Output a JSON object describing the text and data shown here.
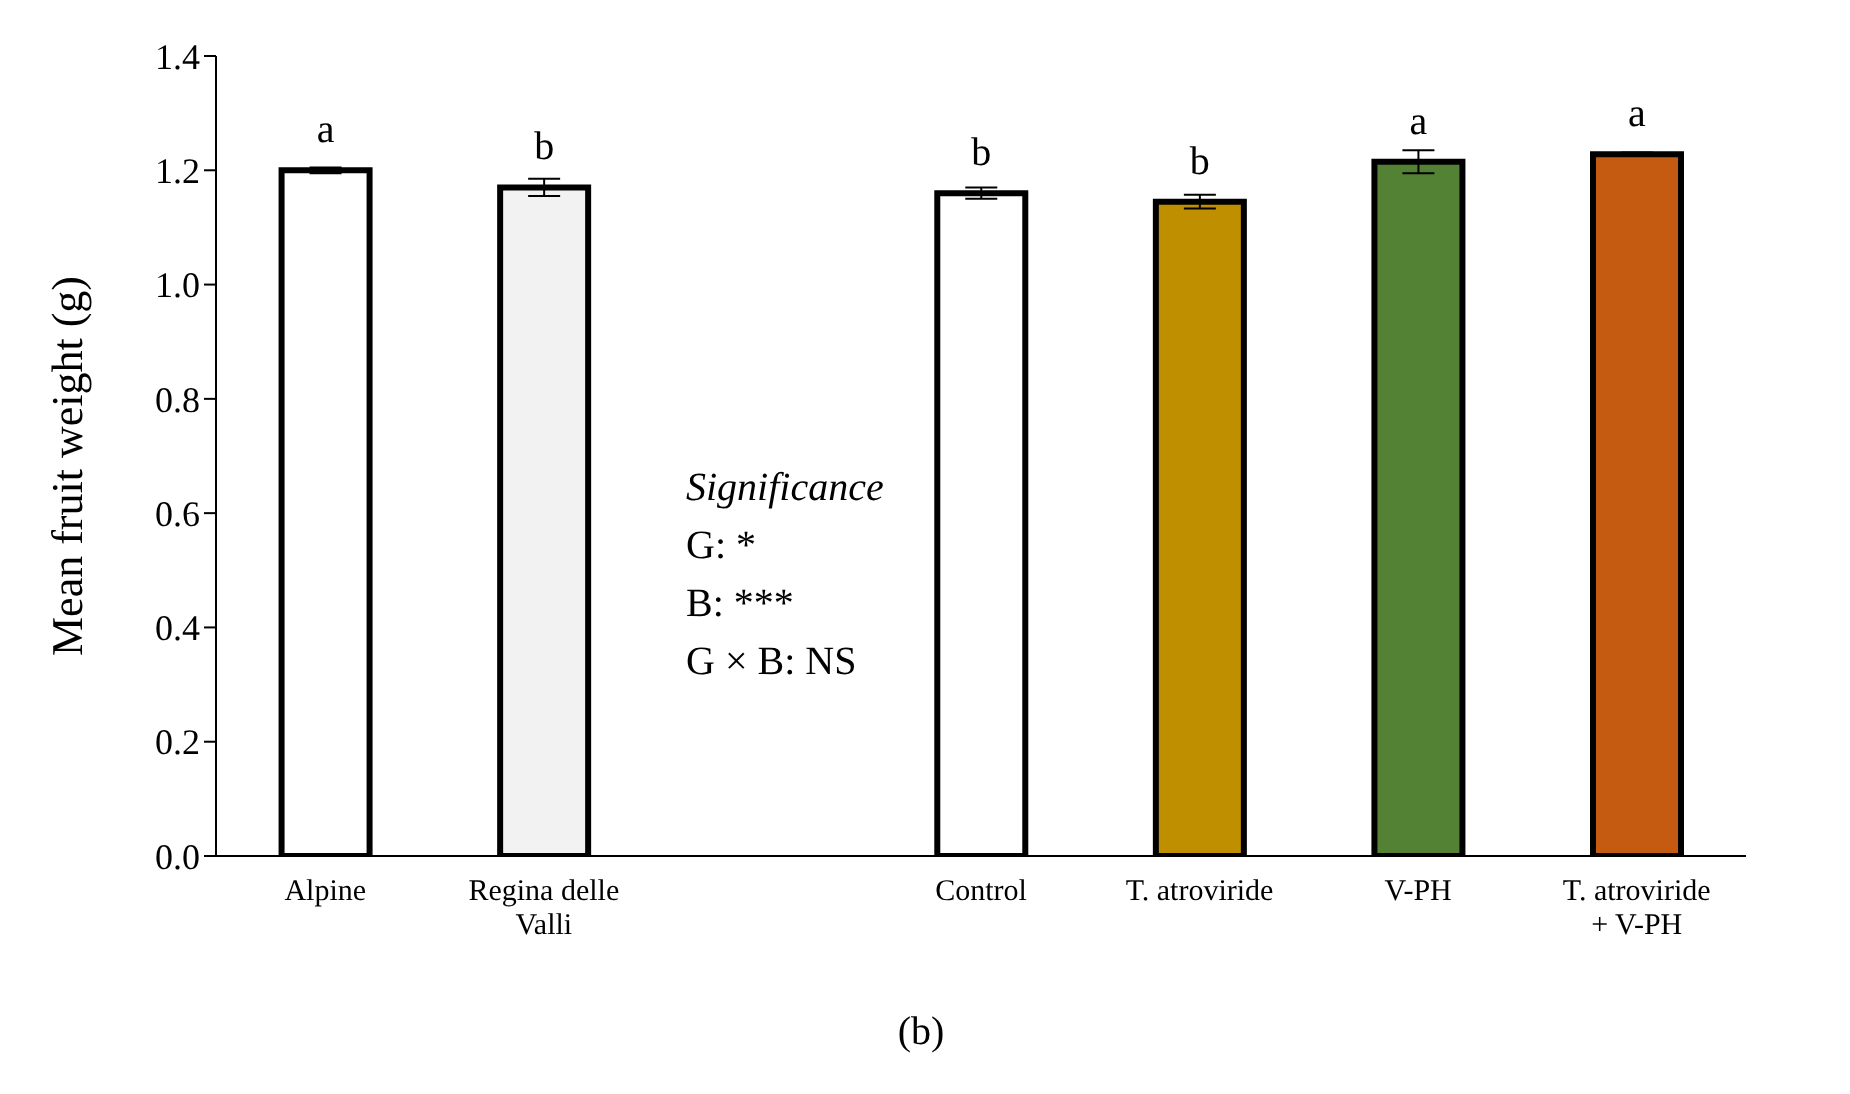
{
  "chart_data": {
    "type": "bar",
    "ylabel": "Mean fruit weight (g)",
    "categories": [
      "Alpine",
      "Regina delle Valli",
      null,
      "Control",
      "T. atroviride",
      "V-PH",
      "T. atroviride + V-PH"
    ],
    "values": [
      1.2,
      1.17,
      null,
      1.16,
      1.145,
      1.215,
      1.228
    ],
    "errors": [
      0.005,
      0.015,
      null,
      0.01,
      0.012,
      0.02,
      0.003
    ],
    "colors": [
      "#ffffff",
      "#f2f2f2",
      "#ffffff",
      "#ffffff",
      "#bf8f00",
      "#548235",
      "#c55a11"
    ],
    "value_labels": [
      "a",
      "b",
      null,
      "b",
      "b",
      "a",
      "a"
    ],
    "ylim": [
      0,
      1.4
    ],
    "yticks": [
      {
        "value": 0,
        "label": "0.0"
      },
      {
        "value": 0.2,
        "label": "0.2"
      },
      {
        "value": 0.4,
        "label": "0.4"
      },
      {
        "value": 0.6,
        "label": "0.6"
      },
      {
        "value": 0.8,
        "label": "0.8"
      },
      {
        "value": 1,
        "label": "1.0"
      },
      {
        "value": 1.2,
        "label": "1.2"
      },
      {
        "value": 1.4,
        "label": "1.4"
      }
    ],
    "grid": false,
    "annotations": [
      "Significance",
      "G: *",
      "B: ***",
      "G × B: NS",
      "(b)"
    ]
  }
}
